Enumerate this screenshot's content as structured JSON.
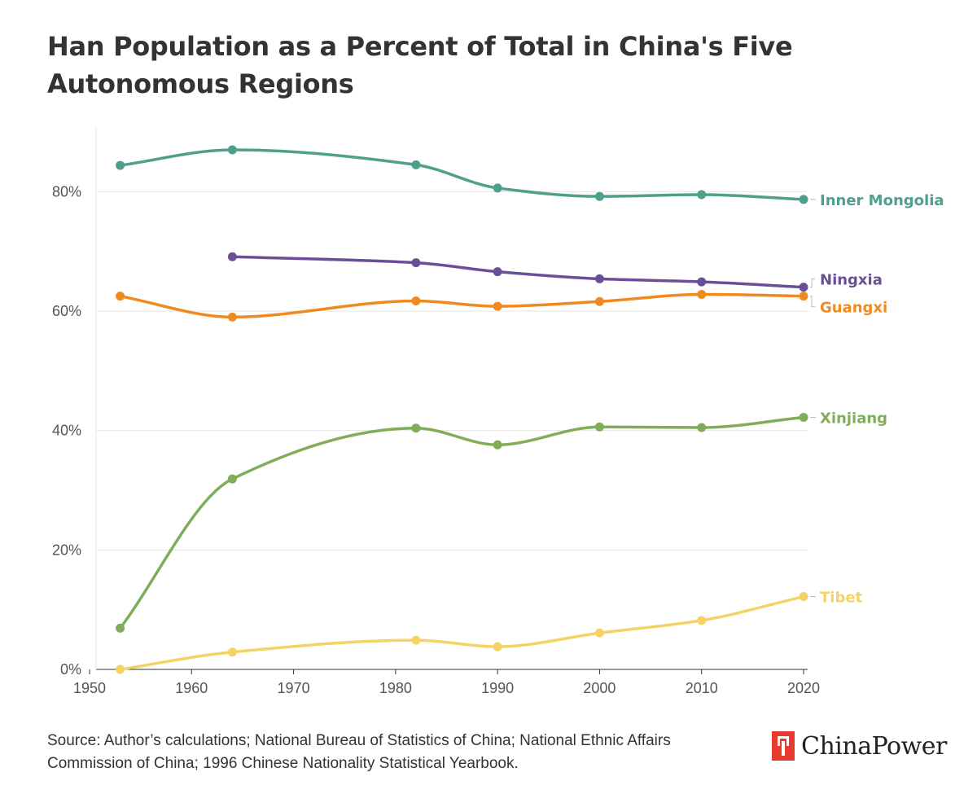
{
  "title": "Han Population as a Percent of Total in China's Five Autonomous Regions",
  "source": "Source: Author’s calculations; National Bureau of Statistics of China; National Ethnic Affairs Commission of China; 1996 Chinese Nationality Statistical Yearbook.",
  "brand": {
    "name": "ChinaPower",
    "icon": "chinapower-logo-icon",
    "color": "#e63b2e"
  },
  "chart_data": {
    "type": "line",
    "title": "Han Population as a Percent of Total in China's Five Autonomous Regions",
    "xlabel": "",
    "ylabel": "",
    "xlim": [
      1950,
      2020
    ],
    "ylim": [
      0,
      90
    ],
    "x_ticks": [
      "1950",
      "1960",
      "1970",
      "1980",
      "1990",
      "2000",
      "2010",
      "2020"
    ],
    "y_ticks": [
      "0%",
      "20%",
      "40%",
      "60%",
      "80%"
    ],
    "grid": true,
    "legend": "labels at line ends (right)",
    "series": [
      {
        "name": "Inner Mongolia",
        "color": "#4e9f8c",
        "x": [
          1953,
          1964,
          1982,
          1990,
          2000,
          2010,
          2020
        ],
        "values": [
          84.4,
          87.0,
          84.5,
          80.6,
          79.2,
          79.5,
          78.7
        ]
      },
      {
        "name": "Ningxia",
        "color": "#6b4f96",
        "x": [
          1964,
          1982,
          1990,
          2000,
          2010,
          2020
        ],
        "values": [
          69.1,
          68.1,
          66.6,
          65.4,
          64.9,
          64.0
        ]
      },
      {
        "name": "Guangxi",
        "color": "#f08a1f",
        "x": [
          1953,
          1964,
          1982,
          1990,
          2000,
          2010,
          2020
        ],
        "values": [
          62.5,
          59.0,
          61.7,
          60.8,
          61.6,
          62.8,
          62.5
        ]
      },
      {
        "name": "Xinjiang",
        "color": "#7fad58",
        "x": [
          1953,
          1964,
          1982,
          1990,
          2000,
          2010,
          2020
        ],
        "values": [
          6.9,
          31.9,
          40.4,
          37.6,
          40.6,
          40.5,
          42.2
        ]
      },
      {
        "name": "Tibet",
        "color": "#f5d266",
        "x": [
          1953,
          1964,
          1982,
          1990,
          2000,
          2010,
          2020
        ],
        "values": [
          0,
          2.9,
          4.9,
          3.8,
          6.1,
          8.2,
          12.2
        ]
      }
    ]
  }
}
